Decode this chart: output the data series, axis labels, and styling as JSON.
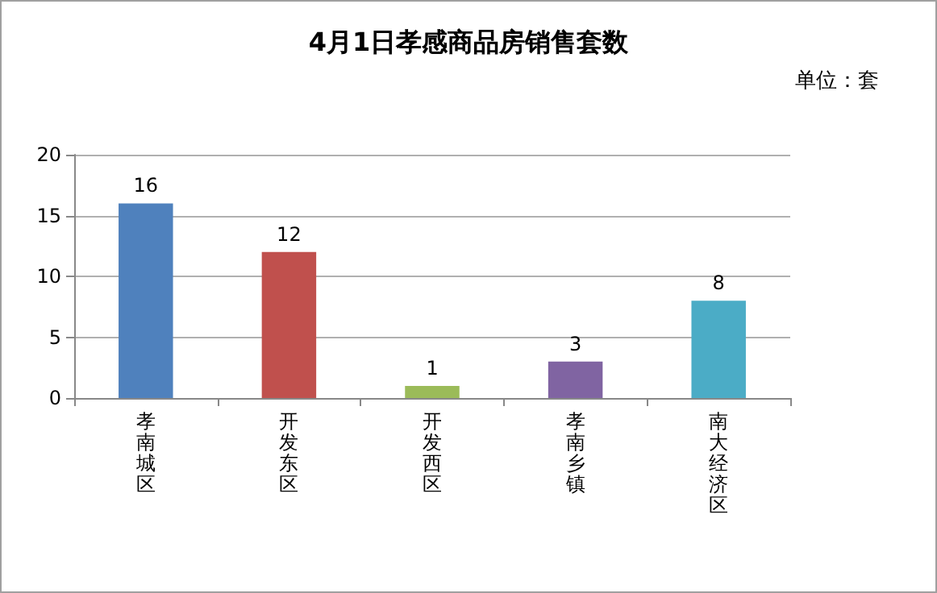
{
  "chart_data": {
    "type": "bar",
    "title": "4月1日孝感商品房销售套数",
    "subtitle": "单位：套",
    "categories": [
      "孝南城区",
      "开发东区",
      "开发西区",
      "孝南乡镇",
      "南大经济区"
    ],
    "values": [
      16,
      12,
      1,
      3,
      8
    ],
    "colors": [
      "#4f81bd",
      "#c0504d",
      "#9bbb59",
      "#8064a2",
      "#4bacc6"
    ],
    "ylim": [
      0,
      20
    ],
    "yticks": [
      0,
      5,
      10,
      15,
      20
    ],
    "grid": "y",
    "data_labels": true
  }
}
